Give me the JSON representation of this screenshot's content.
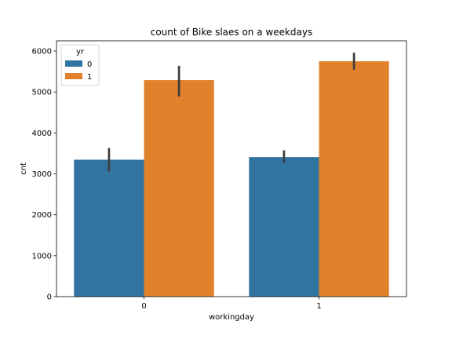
{
  "chart_data": {
    "type": "bar",
    "title": "count of Bike slaes on a weekdays",
    "xlabel": "workingday",
    "ylabel": "cnt",
    "categories": [
      "0",
      "1"
    ],
    "series": [
      {
        "name": "0",
        "values": [
          3345,
          3410
        ],
        "ci": [
          [
            3060,
            3630
          ],
          [
            3260,
            3575
          ]
        ],
        "color": "#3274a1"
      },
      {
        "name": "1",
        "values": [
          5290,
          5750
        ],
        "ci": [
          [
            4890,
            5640
          ],
          [
            5545,
            5960
          ]
        ],
        "color": "#e1812c"
      }
    ],
    "ylim": [
      0,
      6250
    ],
    "yticks": [
      0,
      1000,
      2000,
      3000,
      4000,
      5000,
      6000
    ],
    "legend": {
      "title": "yr",
      "placement": "top-left"
    },
    "grid": false
  }
}
